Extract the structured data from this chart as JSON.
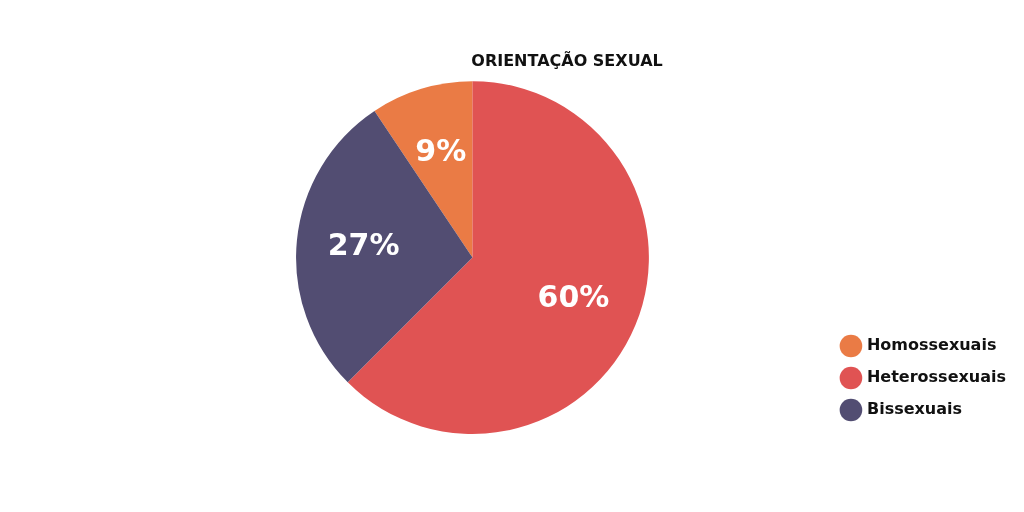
{
  "chart_data": {
    "type": "pie",
    "title": "ORIENTAÇÃO SEXUAL",
    "categories": [
      "Homossexuais",
      "Heterossexuais",
      "Bissexuais"
    ],
    "values": [
      9,
      60,
      27
    ],
    "colors": [
      "#ea7b45",
      "#e05353",
      "#524d72"
    ],
    "value_labels": [
      "9%",
      "60%",
      "27%"
    ],
    "legend": "bottom right"
  }
}
